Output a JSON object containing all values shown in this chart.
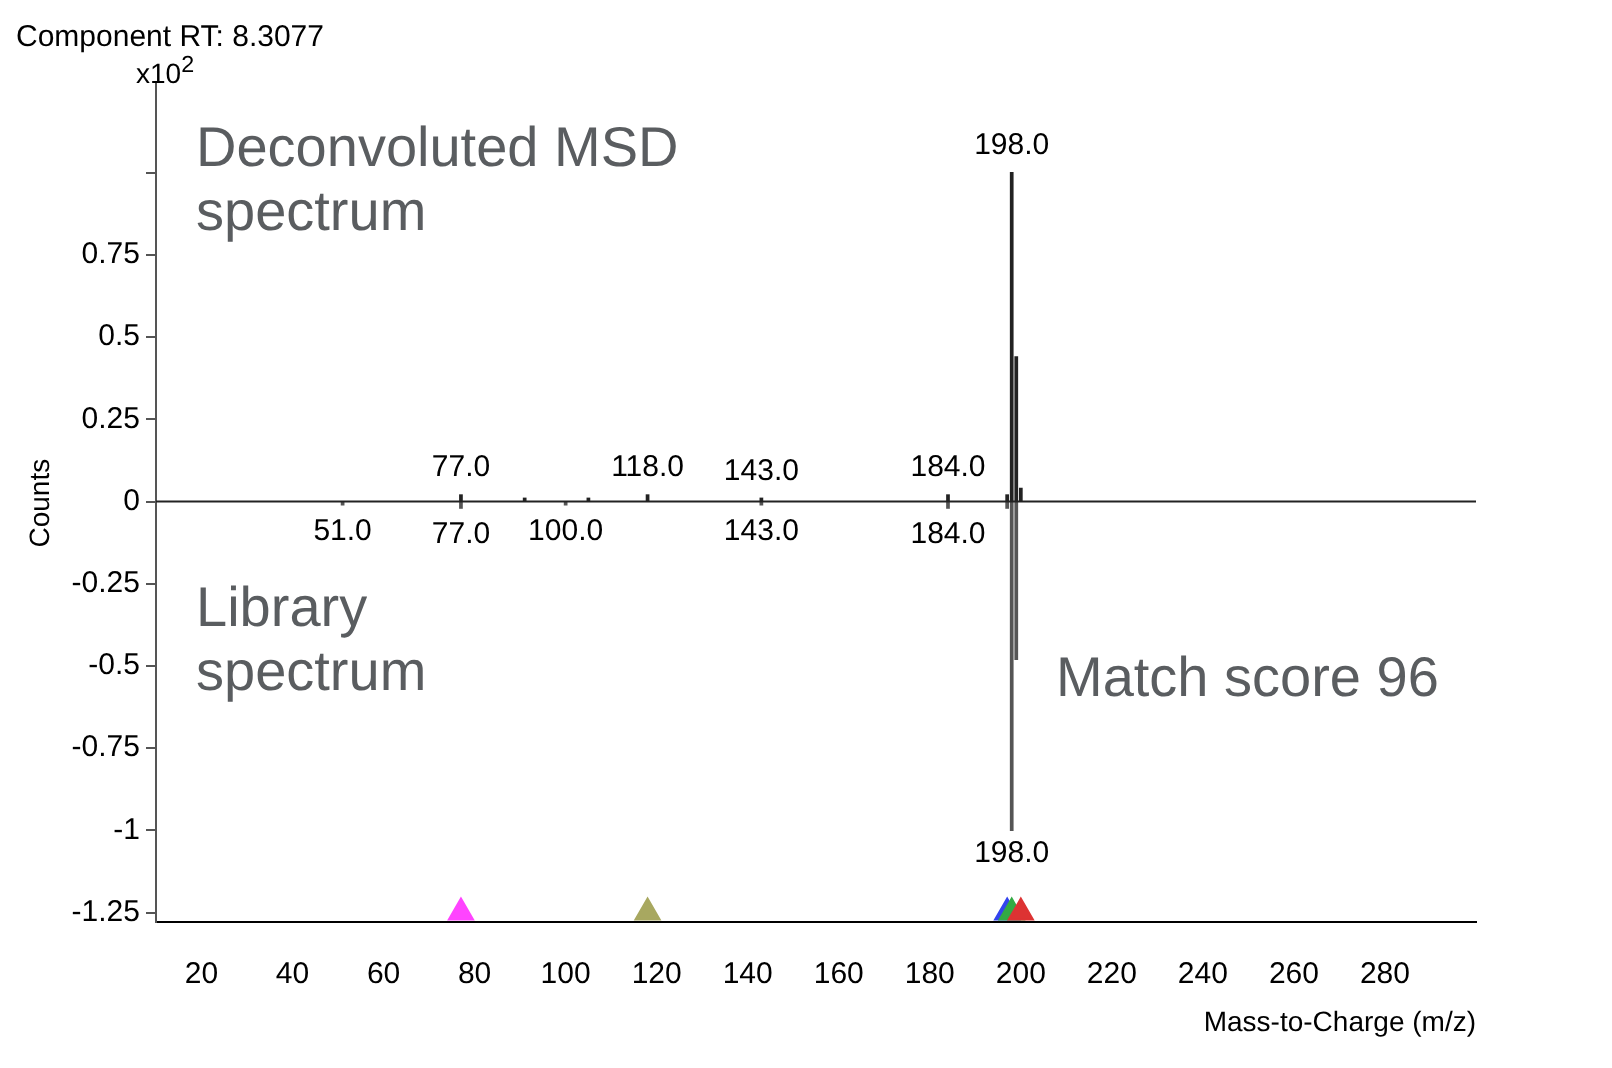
{
  "chart_data": {
    "type": "bar",
    "title": "Component RT: 8.3077",
    "xlabel": "Mass-to-Charge (m/z)",
    "ylabel": "Counts",
    "xlim": [
      10,
      300
    ],
    "xticks": [
      20,
      40,
      60,
      80,
      100,
      120,
      140,
      160,
      180,
      200,
      220,
      240,
      260,
      280
    ],
    "ylim": [
      -1.28,
      1.27
    ],
    "yticks": [
      -1.25,
      -1,
      -0.75,
      -0.5,
      -0.25,
      0,
      0.25,
      0.5,
      0.75,
      {
        "value": 1,
        "label": null
      }
    ],
    "grid": false,
    "legend": false,
    "ref_lines": [
      {
        "axis": "y",
        "value": 0,
        "color": "#222222"
      }
    ],
    "series": [
      {
        "color": "#222222",
        "x": [
          77,
          91,
          105,
          118,
          143,
          184,
          197,
          198,
          199,
          200
        ],
        "values": [
          0.02,
          0.01,
          0.01,
          0.02,
          0.01,
          0.02,
          0.02,
          1.0,
          0.44,
          0.04
        ]
      },
      {
        "color": "#555555",
        "x": [
          51,
          77,
          100,
          143,
          184,
          197,
          198,
          199
        ],
        "values": [
          -0.01,
          -0.02,
          -0.01,
          -0.01,
          -0.02,
          -0.02,
          -1.0,
          -0.48
        ]
      },
      {
        "type": "scatter",
        "marker": "triangle",
        "x": [
          77,
          118,
          197,
          198,
          200
        ],
        "values": [
          -1.25,
          -1.25,
          -1.25,
          -1.25,
          -1.25
        ],
        "colors": [
          "#ff44ff",
          "#a8a860",
          "#3344ee",
          "#33aa44",
          "#dd3333"
        ]
      }
    ],
    "annotations": [
      "x10$^{2}$",
      "Deconvoluted MSD spectrum",
      "Library spectrum",
      "Match score 96",
      {
        "text": "77.0",
        "x": 77,
        "y": 0.02
      },
      {
        "text": "118.0",
        "x": 118,
        "y": 0.02
      },
      {
        "text": "143.0",
        "x": 143,
        "y": 0.01
      },
      {
        "text": "184.0",
        "x": 184,
        "y": 0.02
      },
      {
        "text": "198.0",
        "x": 198,
        "y": 1.0
      },
      {
        "text": "51.0",
        "x": 51,
        "y": -0.01
      },
      {
        "text": "77.0",
        "x": 77,
        "y": -0.02
      },
      {
        "text": "100.0",
        "x": 100,
        "y": -0.01
      },
      {
        "text": "143.0",
        "x": 143,
        "y": -0.01
      },
      {
        "text": "184.0",
        "x": 184,
        "y": -0.02
      },
      {
        "text": "198.0",
        "x": 198,
        "y": -1.0
      }
    ]
  }
}
